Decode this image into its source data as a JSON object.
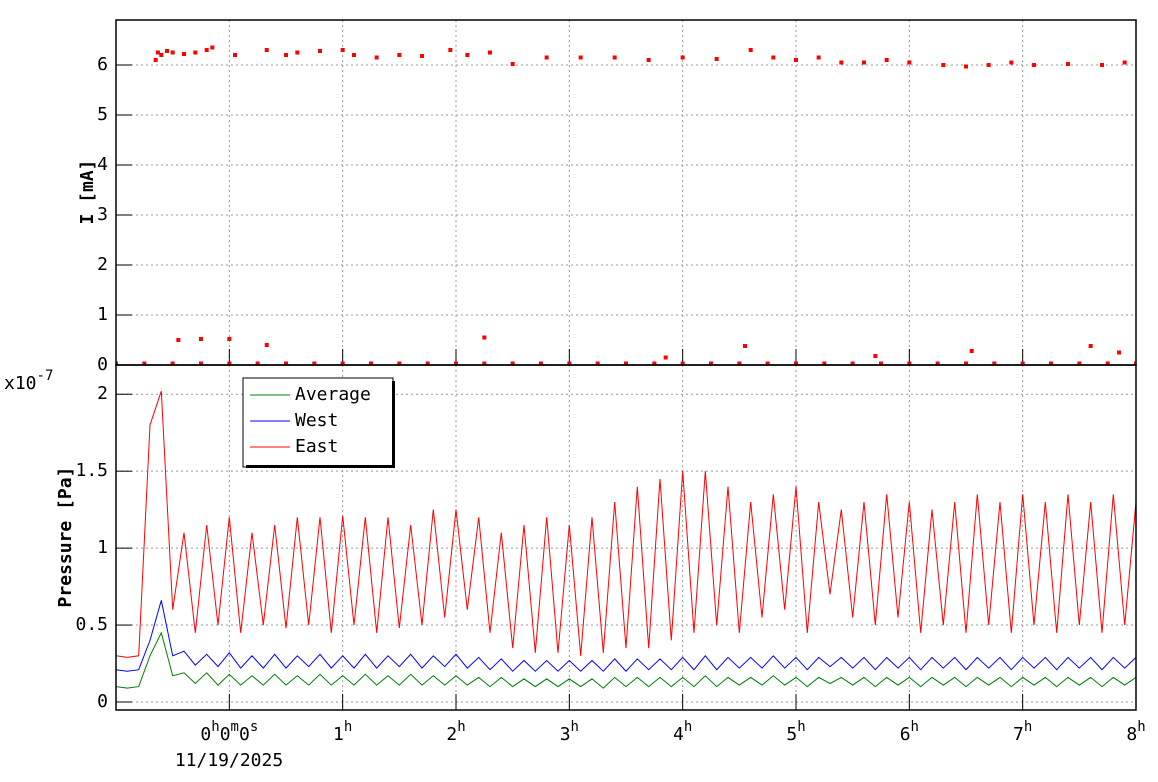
{
  "chart_data": [
    {
      "type": "scatter",
      "y_label": "I [mA]",
      "color": "#ff0000",
      "grid": true,
      "ylim": [
        0,
        6.9
      ],
      "yticks": [
        0,
        1,
        2,
        3,
        4,
        5,
        6
      ],
      "x": [
        -0.65,
        -0.63,
        -0.6,
        -0.55,
        -0.5,
        -0.4,
        -0.3,
        -0.2,
        -0.15,
        0.05,
        0.33,
        0.5,
        0.6,
        0.8,
        1.0,
        1.1,
        1.3,
        1.5,
        1.7,
        1.95,
        2.1,
        2.3,
        2.5,
        2.8,
        3.1,
        3.4,
        3.7,
        4.0,
        4.3,
        4.6,
        4.8,
        5.0,
        5.2,
        5.4,
        5.6,
        5.8,
        6.0,
        6.3,
        6.5,
        6.7,
        6.9,
        7.1,
        7.4,
        7.7,
        7.9,
        -0.45,
        -0.25,
        0.0,
        0.33,
        2.25,
        3.85,
        4.55,
        5.7,
        6.55,
        7.6,
        7.85,
        -1.0,
        -0.75,
        -0.5,
        -0.25,
        0,
        0.25,
        0.5,
        0.75,
        1.0,
        1.25,
        1.5,
        1.75,
        2.0,
        2.25,
        2.5,
        2.75,
        3.0,
        3.25,
        3.5,
        3.75,
        4.0,
        4.25,
        4.5,
        4.75,
        5.0,
        5.25,
        5.5,
        5.75,
        6.0,
        6.25,
        6.5,
        6.75,
        7.0,
        7.25,
        7.5,
        7.75,
        8.0
      ],
      "y": [
        6.1,
        6.25,
        6.2,
        6.28,
        6.25,
        6.22,
        6.25,
        6.3,
        6.35,
        6.2,
        6.3,
        6.2,
        6.25,
        6.28,
        6.3,
        6.2,
        6.15,
        6.2,
        6.18,
        6.3,
        6.2,
        6.25,
        6.02,
        6.15,
        6.15,
        6.15,
        6.1,
        6.15,
        6.12,
        6.3,
        6.15,
        6.1,
        6.15,
        6.05,
        6.05,
        6.1,
        6.05,
        6.0,
        5.97,
        6.0,
        6.05,
        6.0,
        6.02,
        6.0,
        6.05,
        0.5,
        0.52,
        0.52,
        0.4,
        0.55,
        0.15,
        0.38,
        0.18,
        0.28,
        0.38,
        0.25,
        0.03,
        0.03,
        0.03,
        0.03,
        0.03,
        0.03,
        0.03,
        0.03,
        0.03,
        0.03,
        0.03,
        0.03,
        0.03,
        0.03,
        0.03,
        0.03,
        0.03,
        0.03,
        0.03,
        0.03,
        0.03,
        0.03,
        0.03,
        0.03,
        0.03,
        0.03,
        0.03,
        0.03,
        0.03,
        0.03,
        0.03,
        0.03,
        0.03,
        0.03,
        0.03,
        0.03,
        0.03
      ]
    },
    {
      "type": "line",
      "y_label": "Pressure [Pa]",
      "y_multiplier_label": "x10-7",
      "grid": true,
      "legend": "top-left",
      "x_date_label": "11/19/2025",
      "xlim": [
        -1.0,
        8.0
      ],
      "xticks": [
        {
          "value": 0,
          "label": "0h0m0s"
        },
        {
          "value": 1,
          "label": "1h"
        },
        {
          "value": 2,
          "label": "2h"
        },
        {
          "value": 3,
          "label": "3h"
        },
        {
          "value": 4,
          "label": "4h"
        },
        {
          "value": 5,
          "label": "5h"
        },
        {
          "value": 6,
          "label": "6h"
        },
        {
          "value": 7,
          "label": "7h"
        },
        {
          "value": 8,
          "label": "8h"
        }
      ],
      "ylim": [
        -0.052,
        2.19
      ],
      "yticks": [
        0,
        0.5,
        1,
        1.5,
        2
      ],
      "x": [
        -1.0,
        -0.9,
        -0.8,
        -0.7,
        -0.6,
        -0.5,
        -0.4,
        -0.3,
        -0.2,
        -0.1,
        0,
        0.1,
        0.2,
        0.3,
        0.4,
        0.5,
        0.6,
        0.7,
        0.8,
        0.9,
        1.0,
        1.1,
        1.2,
        1.3,
        1.4,
        1.5,
        1.6,
        1.7,
        1.8,
        1.9,
        2.0,
        2.1,
        2.2,
        2.3,
        2.4,
        2.5,
        2.6,
        2.7,
        2.8,
        2.9,
        3.0,
        3.1,
        3.2,
        3.3,
        3.4,
        3.5,
        3.6,
        3.7,
        3.8,
        3.9,
        4.0,
        4.1,
        4.2,
        4.3,
        4.4,
        4.5,
        4.6,
        4.7,
        4.8,
        4.9,
        5.0,
        5.1,
        5.2,
        5.3,
        5.4,
        5.5,
        5.6,
        5.7,
        5.8,
        5.9,
        6.0,
        6.1,
        6.2,
        6.3,
        6.4,
        6.5,
        6.6,
        6.7,
        6.8,
        6.9,
        7.0,
        7.1,
        7.2,
        7.3,
        7.4,
        7.5,
        7.6,
        7.7,
        7.8,
        7.9,
        8.0
      ],
      "series": [
        {
          "name": "Average",
          "color": "#008000",
          "values": [
            0.1,
            0.09,
            0.1,
            0.3,
            0.45,
            0.17,
            0.19,
            0.12,
            0.19,
            0.11,
            0.18,
            0.11,
            0.17,
            0.11,
            0.18,
            0.11,
            0.17,
            0.11,
            0.18,
            0.11,
            0.17,
            0.11,
            0.18,
            0.11,
            0.17,
            0.11,
            0.18,
            0.11,
            0.17,
            0.11,
            0.17,
            0.11,
            0.16,
            0.1,
            0.16,
            0.1,
            0.15,
            0.1,
            0.15,
            0.1,
            0.15,
            0.1,
            0.15,
            0.09,
            0.16,
            0.1,
            0.16,
            0.1,
            0.16,
            0.1,
            0.16,
            0.1,
            0.17,
            0.1,
            0.16,
            0.11,
            0.16,
            0.11,
            0.17,
            0.11,
            0.16,
            0.1,
            0.16,
            0.12,
            0.16,
            0.11,
            0.16,
            0.1,
            0.16,
            0.11,
            0.16,
            0.1,
            0.16,
            0.11,
            0.16,
            0.1,
            0.16,
            0.11,
            0.16,
            0.1,
            0.16,
            0.11,
            0.16,
            0.1,
            0.16,
            0.11,
            0.16,
            0.1,
            0.16,
            0.11,
            0.16
          ]
        },
        {
          "name": "West",
          "color": "#0000ff",
          "values": [
            0.21,
            0.2,
            0.21,
            0.4,
            0.66,
            0.3,
            0.33,
            0.24,
            0.31,
            0.23,
            0.32,
            0.22,
            0.3,
            0.22,
            0.31,
            0.22,
            0.3,
            0.23,
            0.31,
            0.22,
            0.3,
            0.22,
            0.31,
            0.22,
            0.3,
            0.23,
            0.31,
            0.22,
            0.3,
            0.23,
            0.31,
            0.22,
            0.29,
            0.21,
            0.28,
            0.2,
            0.27,
            0.2,
            0.27,
            0.2,
            0.27,
            0.2,
            0.27,
            0.2,
            0.28,
            0.2,
            0.28,
            0.21,
            0.28,
            0.21,
            0.29,
            0.21,
            0.3,
            0.21,
            0.29,
            0.22,
            0.29,
            0.22,
            0.3,
            0.22,
            0.29,
            0.21,
            0.29,
            0.23,
            0.29,
            0.22,
            0.29,
            0.21,
            0.29,
            0.22,
            0.29,
            0.21,
            0.29,
            0.22,
            0.29,
            0.21,
            0.29,
            0.22,
            0.29,
            0.21,
            0.29,
            0.22,
            0.29,
            0.21,
            0.29,
            0.22,
            0.29,
            0.21,
            0.29,
            0.22,
            0.29
          ]
        },
        {
          "name": "East",
          "color": "#ff0000",
          "values": [
            0.3,
            0.29,
            0.3,
            1.8,
            2.02,
            0.6,
            1.1,
            0.45,
            1.15,
            0.5,
            1.2,
            0.45,
            1.1,
            0.5,
            1.15,
            0.48,
            1.2,
            0.5,
            1.2,
            0.45,
            1.21,
            0.5,
            1.2,
            0.45,
            1.2,
            0.48,
            1.15,
            0.5,
            1.25,
            0.55,
            1.25,
            0.6,
            1.2,
            0.45,
            1.1,
            0.35,
            1.15,
            0.32,
            1.2,
            0.32,
            1.15,
            0.3,
            1.2,
            0.32,
            1.3,
            0.35,
            1.4,
            0.35,
            1.45,
            0.4,
            1.5,
            0.45,
            1.5,
            0.5,
            1.4,
            0.45,
            1.3,
            0.55,
            1.35,
            0.6,
            1.4,
            0.45,
            1.3,
            0.7,
            1.25,
            0.55,
            1.3,
            0.5,
            1.35,
            0.55,
            1.3,
            0.45,
            1.25,
            0.5,
            1.3,
            0.45,
            1.35,
            0.5,
            1.3,
            0.45,
            1.35,
            0.5,
            1.3,
            0.45,
            1.35,
            0.5,
            1.3,
            0.45,
            1.35,
            0.5,
            1.3
          ]
        }
      ]
    }
  ]
}
